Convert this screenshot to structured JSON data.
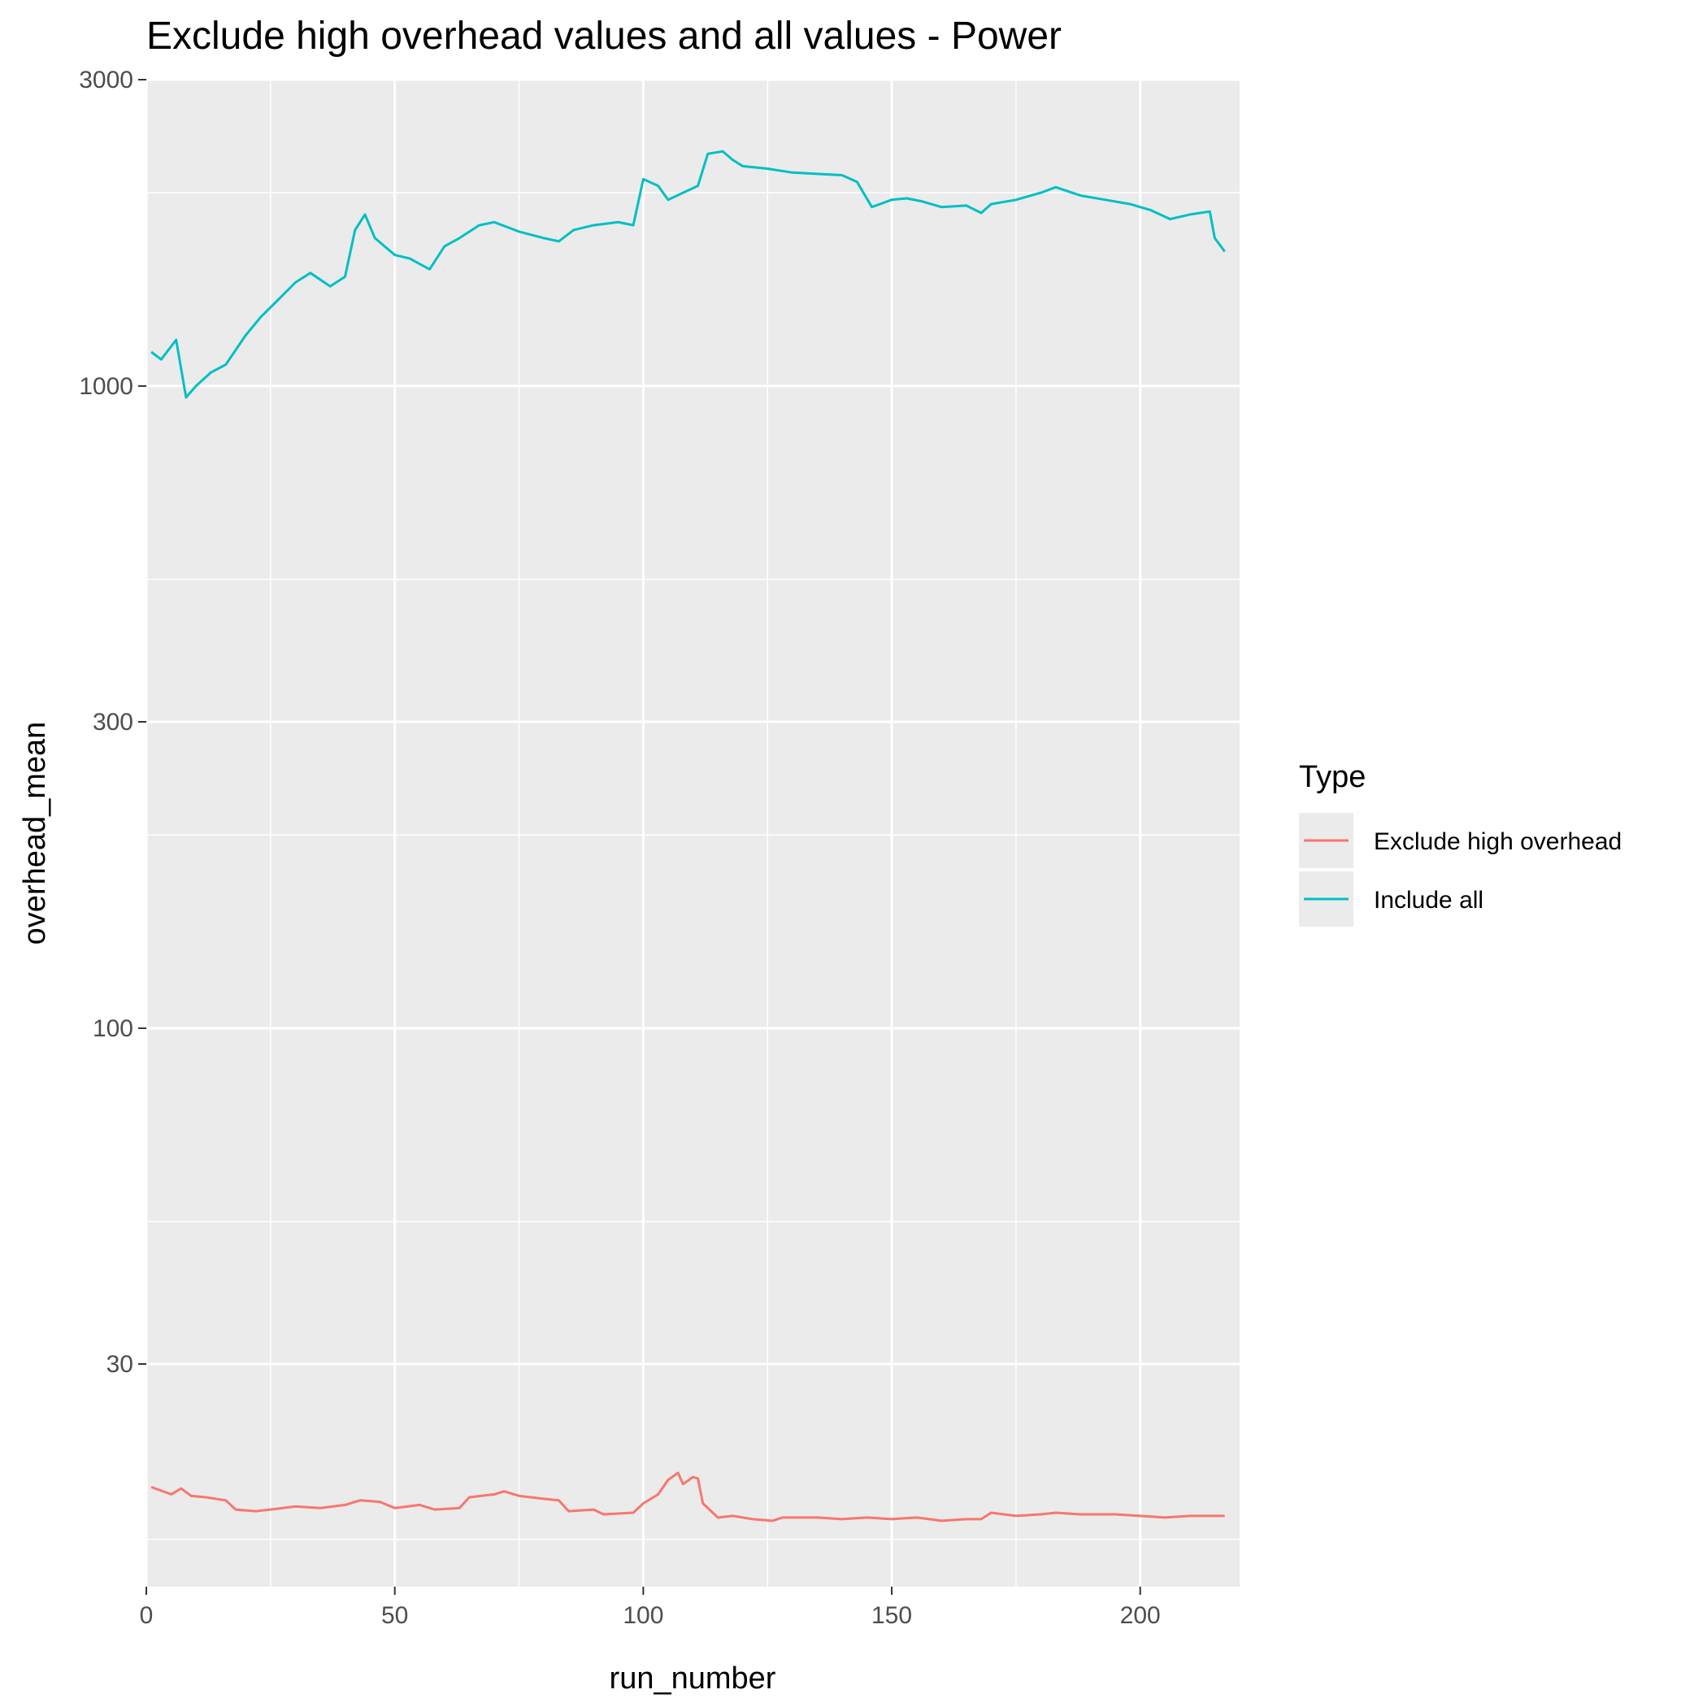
{
  "chart_data": {
    "type": "line",
    "title": "Exclude high overhead values and all values - Power",
    "xlabel": "run_number",
    "ylabel": "overhead_mean",
    "y_scale": "log10",
    "xlim": [
      0,
      220
    ],
    "ylim": [
      13.5,
      3000
    ],
    "x_ticks": [
      0,
      50,
      100,
      150,
      200
    ],
    "y_ticks": [
      30,
      100,
      300,
      1000,
      3000
    ],
    "y_minor_ticks": [
      50,
      200,
      500,
      2000,
      16
    ],
    "grid": true,
    "legend": {
      "title": "Type",
      "position": "right"
    },
    "series": [
      {
        "name": "Exclude high overhead",
        "color": "#F8766D",
        "points": [
          [
            1,
            19.3
          ],
          [
            5,
            18.8
          ],
          [
            7,
            19.2
          ],
          [
            9,
            18.7
          ],
          [
            12,
            18.6
          ],
          [
            16,
            18.4
          ],
          [
            18,
            17.8
          ],
          [
            22,
            17.7
          ],
          [
            25,
            17.8
          ],
          [
            30,
            18.0
          ],
          [
            35,
            17.9
          ],
          [
            40,
            18.1
          ],
          [
            43,
            18.4
          ],
          [
            47,
            18.3
          ],
          [
            50,
            17.9
          ],
          [
            55,
            18.1
          ],
          [
            58,
            17.8
          ],
          [
            63,
            17.9
          ],
          [
            65,
            18.6
          ],
          [
            70,
            18.8
          ],
          [
            72,
            19.0
          ],
          [
            75,
            18.7
          ],
          [
            80,
            18.5
          ],
          [
            83,
            18.4
          ],
          [
            85,
            17.7
          ],
          [
            90,
            17.8
          ],
          [
            92,
            17.5
          ],
          [
            98,
            17.6
          ],
          [
            100,
            18.2
          ],
          [
            103,
            18.8
          ],
          [
            105,
            19.8
          ],
          [
            107,
            20.3
          ],
          [
            108,
            19.5
          ],
          [
            110,
            20.0
          ],
          [
            111,
            19.9
          ],
          [
            112,
            18.2
          ],
          [
            115,
            17.3
          ],
          [
            118,
            17.4
          ],
          [
            122,
            17.2
          ],
          [
            126,
            17.1
          ],
          [
            128,
            17.3
          ],
          [
            135,
            17.3
          ],
          [
            140,
            17.2
          ],
          [
            145,
            17.3
          ],
          [
            150,
            17.2
          ],
          [
            155,
            17.3
          ],
          [
            160,
            17.1
          ],
          [
            165,
            17.2
          ],
          [
            168,
            17.2
          ],
          [
            170,
            17.6
          ],
          [
            175,
            17.4
          ],
          [
            180,
            17.5
          ],
          [
            183,
            17.6
          ],
          [
            188,
            17.5
          ],
          [
            195,
            17.5
          ],
          [
            200,
            17.4
          ],
          [
            205,
            17.3
          ],
          [
            210,
            17.4
          ],
          [
            215,
            17.4
          ],
          [
            217,
            17.4
          ]
        ]
      },
      {
        "name": "Include all",
        "color": "#00BFC4",
        "points": [
          [
            1,
            1130
          ],
          [
            3,
            1100
          ],
          [
            6,
            1180
          ],
          [
            8,
            960
          ],
          [
            10,
            1000
          ],
          [
            13,
            1050
          ],
          [
            16,
            1080
          ],
          [
            20,
            1200
          ],
          [
            23,
            1280
          ],
          [
            26,
            1350
          ],
          [
            30,
            1450
          ],
          [
            33,
            1500
          ],
          [
            37,
            1430
          ],
          [
            40,
            1480
          ],
          [
            42,
            1750
          ],
          [
            44,
            1850
          ],
          [
            46,
            1700
          ],
          [
            50,
            1600
          ],
          [
            53,
            1580
          ],
          [
            57,
            1520
          ],
          [
            60,
            1650
          ],
          [
            63,
            1700
          ],
          [
            67,
            1780
          ],
          [
            70,
            1800
          ],
          [
            75,
            1740
          ],
          [
            80,
            1700
          ],
          [
            83,
            1680
          ],
          [
            86,
            1750
          ],
          [
            90,
            1780
          ],
          [
            95,
            1800
          ],
          [
            98,
            1780
          ],
          [
            100,
            2100
          ],
          [
            103,
            2050
          ],
          [
            105,
            1950
          ],
          [
            108,
            2000
          ],
          [
            111,
            2050
          ],
          [
            113,
            2300
          ],
          [
            116,
            2320
          ],
          [
            118,
            2250
          ],
          [
            120,
            2200
          ],
          [
            125,
            2180
          ],
          [
            130,
            2150
          ],
          [
            135,
            2140
          ],
          [
            140,
            2130
          ],
          [
            143,
            2080
          ],
          [
            146,
            1900
          ],
          [
            150,
            1950
          ],
          [
            153,
            1960
          ],
          [
            156,
            1940
          ],
          [
            160,
            1900
          ],
          [
            165,
            1910
          ],
          [
            168,
            1860
          ],
          [
            170,
            1920
          ],
          [
            175,
            1950
          ],
          [
            180,
            2000
          ],
          [
            183,
            2040
          ],
          [
            188,
            1980
          ],
          [
            193,
            1950
          ],
          [
            198,
            1920
          ],
          [
            202,
            1880
          ],
          [
            206,
            1820
          ],
          [
            210,
            1850
          ],
          [
            214,
            1870
          ],
          [
            215,
            1700
          ],
          [
            217,
            1620
          ]
        ]
      }
    ]
  }
}
